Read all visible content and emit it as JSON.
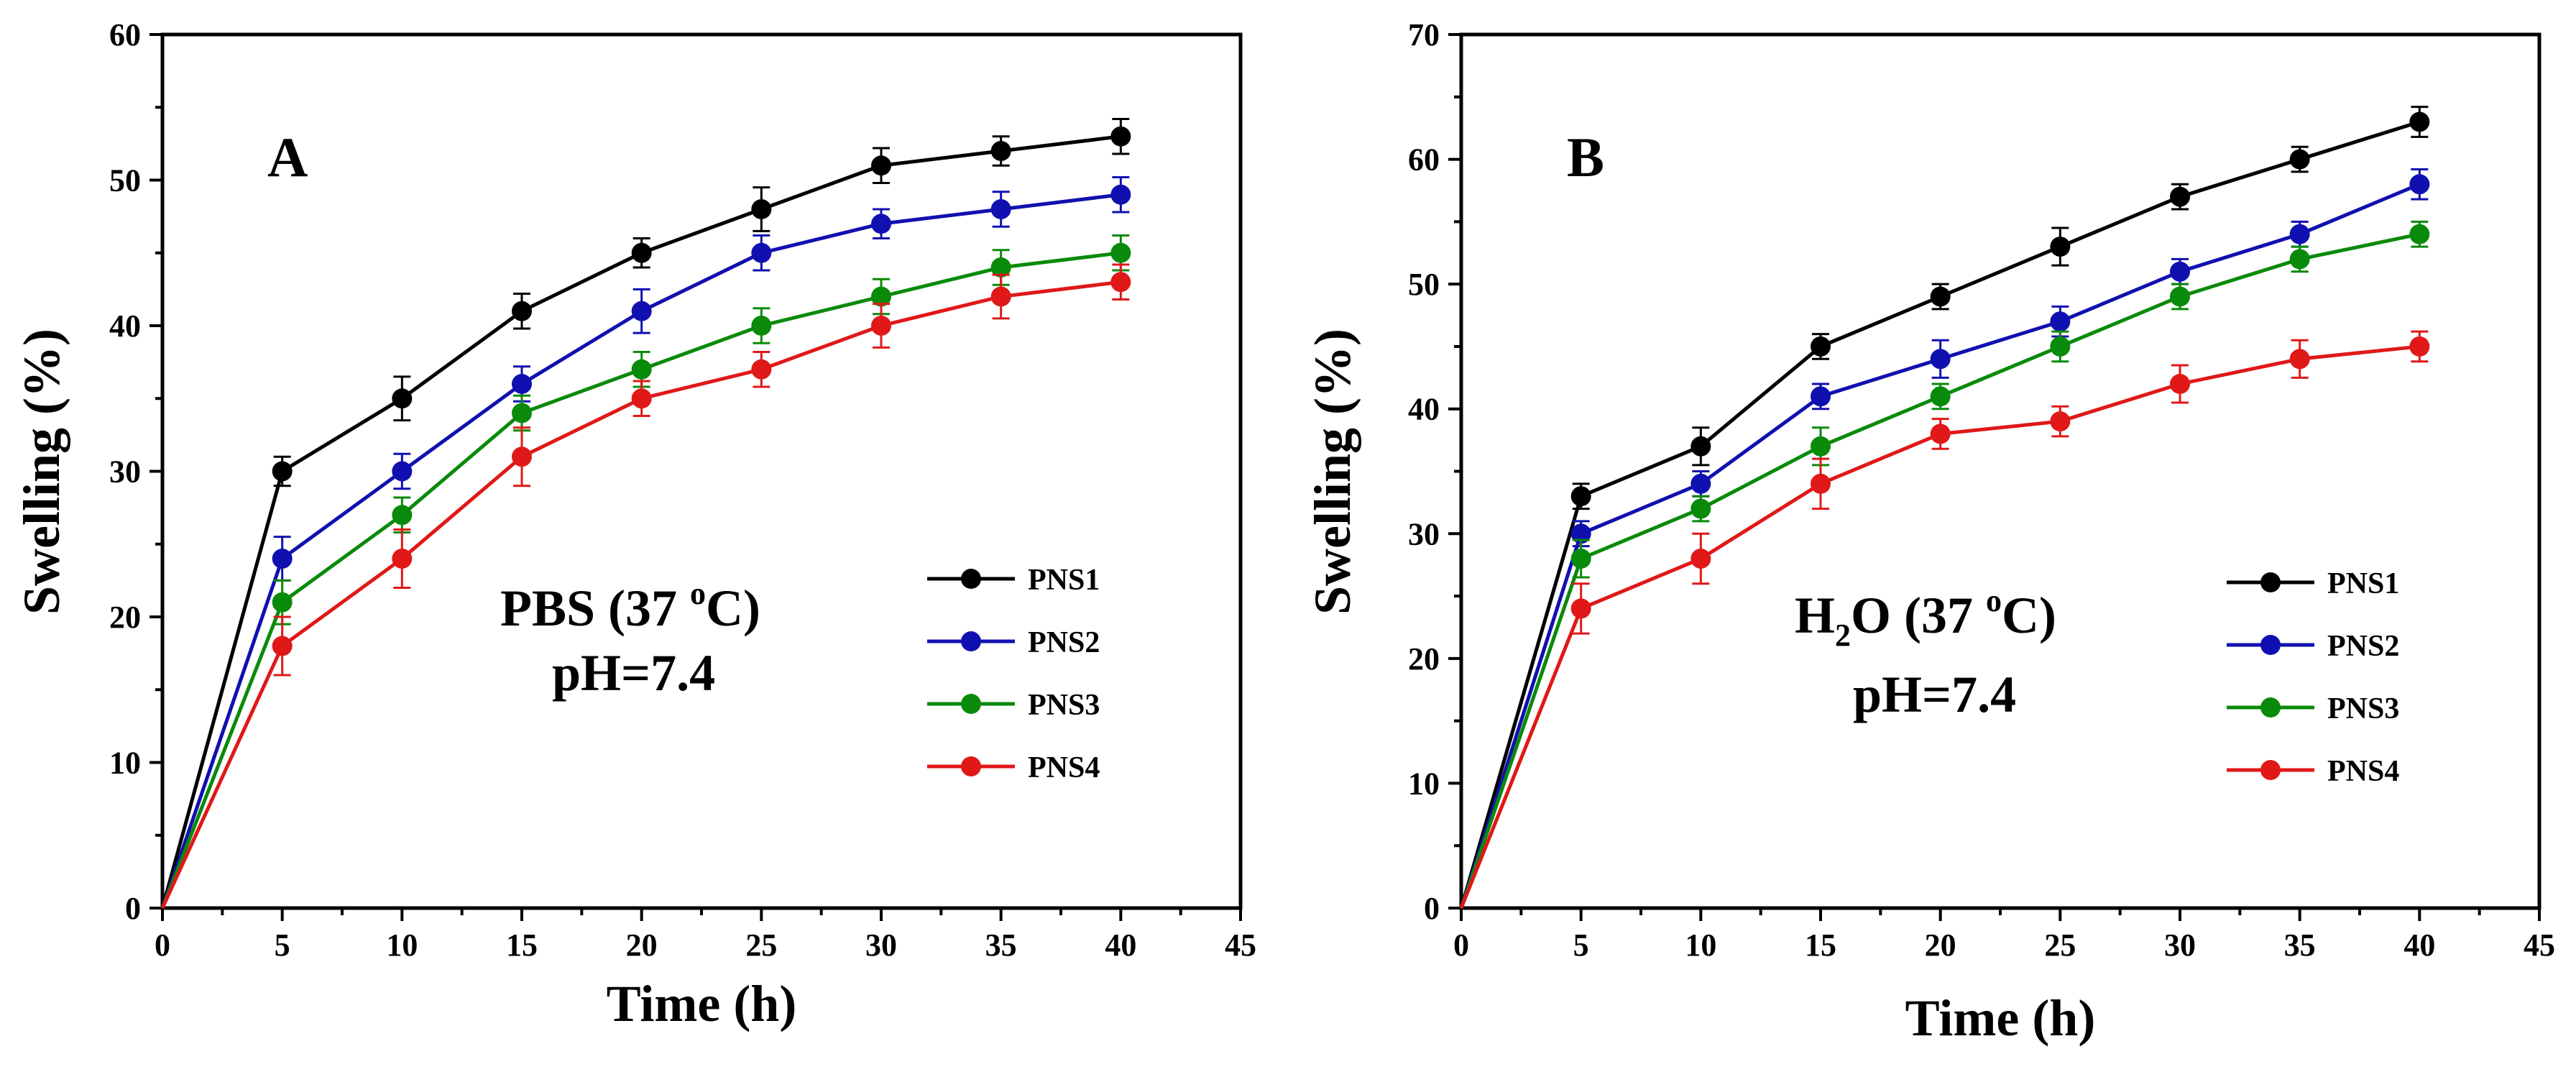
{
  "chart_data": [
    {
      "type": "line",
      "panel_label": "A",
      "condition_line1_pre": "PBS (37 ",
      "condition_line1_sup": "o",
      "condition_line1_post": "C)",
      "condition_line2": "pH=7.4",
      "xlabel": "Time (h)",
      "ylabel": "Swelling (%)",
      "xlim": [
        0,
        45
      ],
      "ylim": [
        0,
        60
      ],
      "xticks": [
        0,
        5,
        10,
        15,
        20,
        25,
        30,
        35,
        40,
        45
      ],
      "yticks": [
        0,
        10,
        20,
        30,
        40,
        50,
        60
      ],
      "x": [
        0,
        5,
        10,
        15,
        20,
        25,
        30,
        35,
        40
      ],
      "legend_position": "right-center",
      "series": [
        {
          "name": "PNS1",
          "color": "#000000",
          "values": [
            0,
            30,
            35,
            41,
            45,
            48,
            51,
            52,
            53
          ],
          "errors": [
            0,
            1.0,
            1.5,
            1.2,
            1.0,
            1.5,
            1.2,
            1.0,
            1.2
          ]
        },
        {
          "name": "PNS2",
          "color": "#1010b0",
          "values": [
            0,
            24,
            30,
            36,
            41,
            45,
            47,
            48,
            49
          ],
          "errors": [
            0,
            1.5,
            1.2,
            1.2,
            1.5,
            1.2,
            1.0,
            1.2,
            1.2
          ]
        },
        {
          "name": "PNS3",
          "color": "#0a8a0a",
          "values": [
            0,
            21,
            27,
            34,
            37,
            40,
            42,
            44,
            45
          ],
          "errors": [
            0,
            1.5,
            1.2,
            1.2,
            1.2,
            1.2,
            1.2,
            1.2,
            1.2
          ]
        },
        {
          "name": "PNS4",
          "color": "#e01818",
          "values": [
            0,
            18,
            24,
            31,
            35,
            37,
            40,
            42,
            43
          ],
          "errors": [
            0,
            2.0,
            2.0,
            2.0,
            1.2,
            1.2,
            1.5,
            1.5,
            1.2
          ]
        }
      ]
    },
    {
      "type": "line",
      "panel_label": "B",
      "condition_line1_pre": "H",
      "condition_line1_sub": "2",
      "condition_line1_mid": "O (37 ",
      "condition_line1_sup": "o",
      "condition_line1_post": "C)",
      "condition_line2": "pH=7.4",
      "xlabel": "Time (h)",
      "ylabel": "Swelling (%)",
      "xlim": [
        0,
        45
      ],
      "ylim": [
        0,
        70
      ],
      "xticks": [
        0,
        5,
        10,
        15,
        20,
        25,
        30,
        35,
        40,
        45
      ],
      "yticks": [
        0,
        10,
        20,
        30,
        40,
        50,
        60,
        70
      ],
      "x": [
        0,
        5,
        10,
        15,
        20,
        25,
        30,
        35,
        40
      ],
      "legend_position": "right-center",
      "series": [
        {
          "name": "PNS1",
          "color": "#000000",
          "values": [
            0,
            33,
            37,
            45,
            49,
            53,
            57,
            60,
            63
          ],
          "errors": [
            0,
            1.0,
            1.5,
            1.0,
            1.0,
            1.5,
            1.0,
            1.0,
            1.2
          ]
        },
        {
          "name": "PNS2",
          "color": "#1010b0",
          "values": [
            0,
            30,
            34,
            41,
            44,
            47,
            51,
            54,
            58
          ],
          "errors": [
            0,
            1.0,
            1.0,
            1.0,
            1.5,
            1.2,
            1.0,
            1.0,
            1.2
          ]
        },
        {
          "name": "PNS3",
          "color": "#0a8a0a",
          "values": [
            0,
            28,
            32,
            37,
            41,
            45,
            49,
            52,
            54
          ],
          "errors": [
            0,
            1.5,
            1.0,
            1.5,
            1.0,
            1.2,
            1.0,
            1.0,
            1.0
          ]
        },
        {
          "name": "PNS4",
          "color": "#e01818",
          "values": [
            0,
            24,
            28,
            34,
            38,
            39,
            42,
            44,
            45
          ],
          "errors": [
            0,
            2.0,
            2.0,
            2.0,
            1.2,
            1.2,
            1.5,
            1.5,
            1.2
          ]
        }
      ]
    }
  ]
}
